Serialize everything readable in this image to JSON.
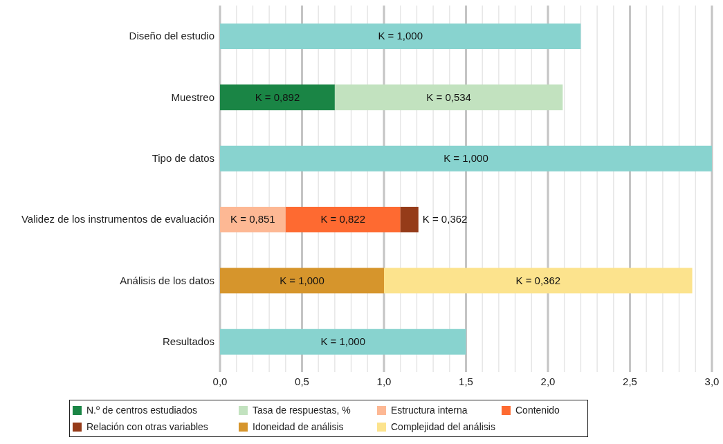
{
  "chart_data": {
    "type": "bar",
    "orientation": "horizontal",
    "stacked": true,
    "grid": "x",
    "legend": "bottom",
    "categories": [
      "Diseño del estudio",
      "Muestreo",
      "Tipo de datos",
      "Validez de los instrumentos de evaluación",
      "Análisis de los datos",
      "Resultados"
    ],
    "xlim": [
      0,
      3
    ],
    "xticks": [
      {
        "value": 0,
        "label": "0,0"
      },
      {
        "value": 0.1,
        "label": null
      },
      {
        "value": 0.2,
        "label": null
      },
      {
        "value": 0.3,
        "label": null
      },
      {
        "value": 0.4,
        "label": null
      },
      {
        "value": 0.5,
        "label": "0,5"
      },
      {
        "value": 0.6,
        "label": null
      },
      {
        "value": 0.7,
        "label": null
      },
      {
        "value": 0.8,
        "label": null
      },
      {
        "value": 0.9,
        "label": null
      },
      {
        "value": 1,
        "label": "1,0"
      },
      {
        "value": 1.1,
        "label": null
      },
      {
        "value": 1.2,
        "label": null
      },
      {
        "value": 1.3,
        "label": null
      },
      {
        "value": 1.4,
        "label": null
      },
      {
        "value": 1.5,
        "label": "1,5"
      },
      {
        "value": 1.6,
        "label": null
      },
      {
        "value": 1.7,
        "label": null
      },
      {
        "value": 1.8,
        "label": null
      },
      {
        "value": 1.9,
        "label": null
      },
      {
        "value": 2,
        "label": "2,0"
      },
      {
        "value": 2.1,
        "label": null
      },
      {
        "value": 2.2,
        "label": null
      },
      {
        "value": 2.3,
        "label": null
      },
      {
        "value": 2.4,
        "label": null
      },
      {
        "value": 2.5,
        "label": "2,5"
      },
      {
        "value": 2.6,
        "label": null
      },
      {
        "value": 2.7,
        "label": null
      },
      {
        "value": 2.8,
        "label": null
      },
      {
        "value": 2.9,
        "label": null
      },
      {
        "value": 3,
        "label": "3,0"
      }
    ],
    "series": [
      {
        "color": "#88d3cf",
        "values": [
          2.2,
          null,
          3.0,
          null,
          null,
          1.5
        ]
      },
      {
        "name": "N.º de centros estudiados",
        "color": "#1a8545",
        "values": [
          null,
          0.7,
          null,
          null,
          null,
          null
        ]
      },
      {
        "name": "Tasa de respuestas, %",
        "color": "#c2e2bf",
        "values": [
          null,
          1.39,
          null,
          null,
          null,
          null
        ]
      },
      {
        "name": "Estructura interna",
        "color": "#fdb894",
        "values": [
          null,
          null,
          null,
          0.4,
          null,
          null
        ]
      },
      {
        "name": "Contenido",
        "color": "#fe6a31",
        "values": [
          null,
          null,
          null,
          0.7,
          null,
          null
        ]
      },
      {
        "name": "Relación con otras variables",
        "color": "#953b19",
        "values": [
          null,
          null,
          null,
          0.11,
          null,
          null
        ]
      },
      {
        "name": "Idoneidad de análisis",
        "color": "#d6952c",
        "values": [
          null,
          null,
          null,
          null,
          1.0,
          null
        ]
      },
      {
        "name": "Complejidad del análisis",
        "color": "#fce38d",
        "values": [
          null,
          null,
          null,
          null,
          1.88,
          null
        ]
      }
    ],
    "annotations": [
      "K = 1,000",
      "K = 0,892",
      "K = 0,534",
      "K = 1,000",
      "K = 0,851",
      "K = 0,822",
      "K = 0,362",
      "K = 1,000",
      "K = 0,362",
      "K = 1,000"
    ]
  }
}
